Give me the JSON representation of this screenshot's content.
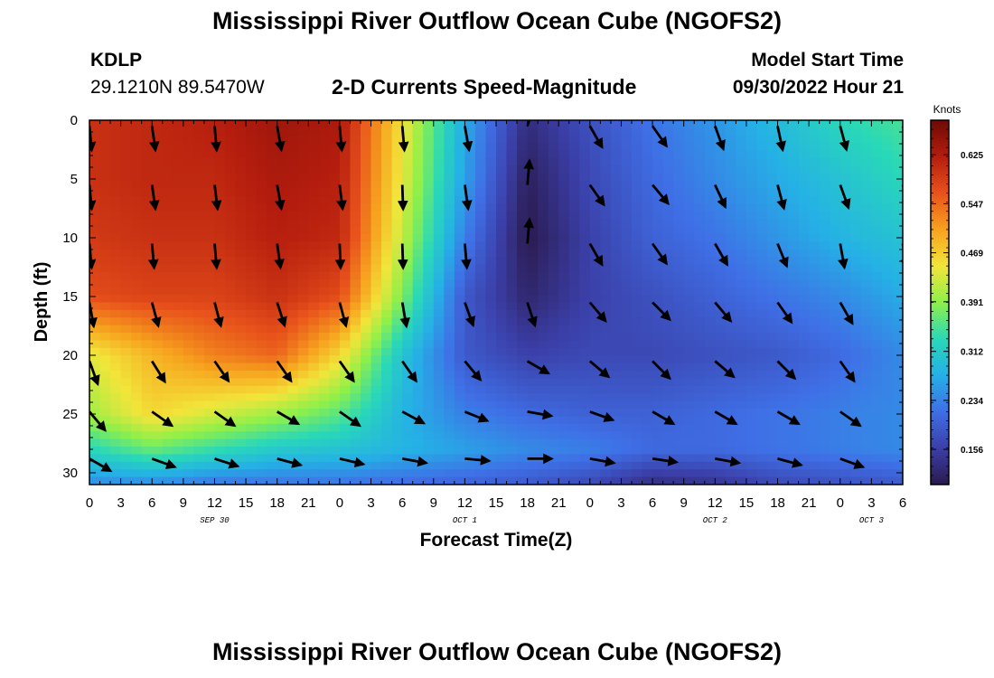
{
  "header": {
    "main_title": "Mississippi River Outflow Ocean Cube (NGOFS2)",
    "station_id": "KDLP",
    "station_coords": "29.1210N  89.5470W",
    "model_start_label": "Model Start Time",
    "model_start_time": "09/30/2022 Hour 21",
    "bottom_title": "Mississippi River Outflow Ocean Cube (NGOFS2)"
  },
  "colors": {
    "scale": [
      "#2a1a4e",
      "#3b3fa8",
      "#3f6fe6",
      "#25b0e6",
      "#29d8b8",
      "#8ef049",
      "#f2e53a",
      "#f7a21e",
      "#e8521b",
      "#b51d0e",
      "#6e0a05"
    ]
  },
  "chart_data": {
    "type": "heatmap",
    "title": "2-D Currents Speed-Magnitude",
    "xlabel": "Forecast Time(Z)",
    "ylabel": "Depth (ft)",
    "x_range": [
      0,
      78
    ],
    "ylim": [
      0,
      31
    ],
    "y_inverted": true,
    "x_ticks": [
      0,
      3,
      6,
      9,
      12,
      15,
      18,
      21,
      24,
      27,
      30,
      33,
      36,
      39,
      42,
      45,
      48,
      51,
      54,
      57,
      60,
      63,
      66,
      69,
      72,
      75,
      78
    ],
    "x_tick_labels": [
      "0",
      "3",
      "6",
      "9",
      "12",
      "15",
      "18",
      "21",
      "0",
      "3",
      "6",
      "9",
      "12",
      "15",
      "18",
      "21",
      "0",
      "3",
      "6",
      "9",
      "12",
      "15",
      "18",
      "21",
      "0",
      "3",
      "6"
    ],
    "y_ticks": [
      0,
      5,
      10,
      15,
      20,
      25,
      30
    ],
    "y_tick_labels": [
      "0",
      "5",
      "10",
      "15",
      "20",
      "25",
      "30"
    ],
    "date_labels": [
      {
        "x": 12,
        "text": "SEP 30"
      },
      {
        "x": 36,
        "text": "OCT 1"
      },
      {
        "x": 60,
        "text": "OCT 2"
      },
      {
        "x": 75,
        "text": "OCT 3"
      }
    ],
    "colorbar": {
      "unit": "Knots",
      "min": 0.1,
      "max": 0.68,
      "ticks": [
        0.156,
        0.234,
        0.312,
        0.391,
        0.469,
        0.547,
        0.625
      ],
      "tick_labels": [
        "0.156",
        "0.234",
        "0.312",
        "0.391",
        "0.469",
        "0.547",
        "0.625"
      ]
    },
    "grid_hours": [
      0,
      6,
      12,
      18,
      24,
      30,
      36,
      42,
      48,
      54,
      60,
      66,
      72,
      78
    ],
    "grid_depths": [
      0,
      5,
      10,
      15,
      20,
      25,
      28,
      31
    ],
    "speed_grid": [
      [
        0.6,
        0.61,
        0.62,
        0.64,
        0.63,
        0.45,
        0.27,
        0.13,
        0.18,
        0.22,
        0.25,
        0.29,
        0.33,
        0.35
      ],
      [
        0.6,
        0.61,
        0.61,
        0.63,
        0.62,
        0.44,
        0.26,
        0.11,
        0.17,
        0.21,
        0.24,
        0.27,
        0.3,
        0.33
      ],
      [
        0.59,
        0.6,
        0.6,
        0.62,
        0.61,
        0.42,
        0.23,
        0.1,
        0.16,
        0.2,
        0.22,
        0.25,
        0.28,
        0.3
      ],
      [
        0.57,
        0.58,
        0.58,
        0.6,
        0.57,
        0.38,
        0.19,
        0.12,
        0.16,
        0.18,
        0.2,
        0.22,
        0.24,
        0.27
      ],
      [
        0.44,
        0.49,
        0.53,
        0.55,
        0.46,
        0.3,
        0.19,
        0.16,
        0.17,
        0.17,
        0.18,
        0.19,
        0.21,
        0.24
      ],
      [
        0.4,
        0.46,
        0.43,
        0.4,
        0.36,
        0.28,
        0.23,
        0.21,
        0.2,
        0.2,
        0.21,
        0.22,
        0.23,
        0.24
      ],
      [
        0.33,
        0.37,
        0.34,
        0.31,
        0.3,
        0.28,
        0.26,
        0.24,
        0.23,
        0.21,
        0.21,
        0.22,
        0.23,
        0.24
      ],
      [
        0.24,
        0.24,
        0.22,
        0.22,
        0.22,
        0.21,
        0.2,
        0.19,
        0.17,
        0.13,
        0.14,
        0.17,
        0.18,
        0.19
      ]
    ],
    "arrows": {
      "hours": [
        0,
        6,
        12,
        18,
        24,
        30,
        36,
        42,
        48,
        54,
        60,
        66,
        72,
        78
      ],
      "depths": [
        0.5,
        5.5,
        10.5,
        15.5,
        20.5,
        24.8,
        28.8
      ],
      "directions_deg": [
        [
          175,
          172,
          175,
          170,
          175,
          175,
          170,
          18,
          150,
          145,
          160,
          168,
          165,
          160
        ],
        [
          175,
          172,
          173,
          170,
          173,
          178,
          172,
          5,
          145,
          140,
          155,
          165,
          160,
          165
        ],
        [
          175,
          175,
          175,
          172,
          178,
          178,
          175,
          5,
          150,
          145,
          150,
          158,
          170,
          170
        ],
        [
          170,
          165,
          165,
          162,
          165,
          170,
          160,
          162,
          140,
          135,
          140,
          145,
          150,
          150
        ],
        [
          160,
          148,
          145,
          145,
          145,
          145,
          140,
          120,
          130,
          135,
          130,
          135,
          145,
          145
        ],
        [
          140,
          125,
          125,
          120,
          125,
          118,
          112,
          100,
          110,
          120,
          120,
          120,
          125,
          125
        ],
        [
          120,
          110,
          108,
          105,
          103,
          100,
          95,
          90,
          100,
          98,
          100,
          105,
          110,
          115
        ]
      ]
    }
  }
}
